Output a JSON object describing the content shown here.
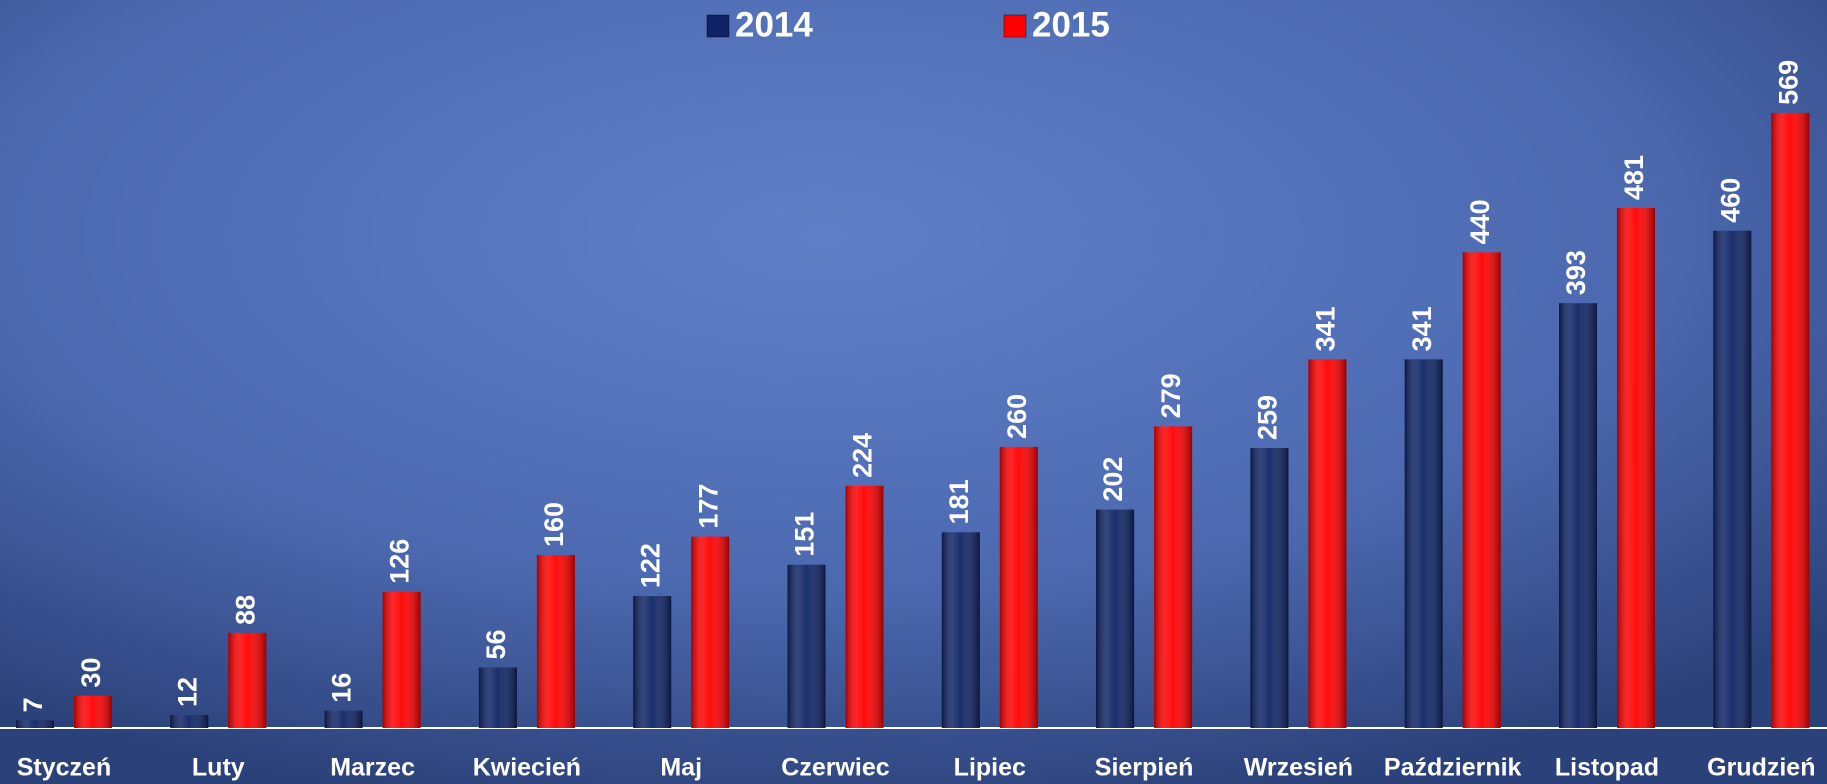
{
  "chart_data": {
    "type": "bar",
    "categories": [
      "Styczeń",
      "Luty",
      "Marzec",
      "Kwiecień",
      "Maj",
      "Czerwiec",
      "Lipiec",
      "Sierpień",
      "Wrzesień",
      "Październik",
      "Listopad",
      "Grudzień"
    ],
    "series": [
      {
        "name": "2014",
        "color": "#0f2466",
        "values": [
          7,
          12,
          16,
          56,
          122,
          151,
          181,
          202,
          259,
          341,
          393,
          460
        ]
      },
      {
        "name": "2015",
        "color": "#ff0000",
        "values": [
          30,
          88,
          126,
          160,
          177,
          224,
          260,
          279,
          341,
          440,
          481,
          569
        ]
      }
    ],
    "legend": "top"
  }
}
